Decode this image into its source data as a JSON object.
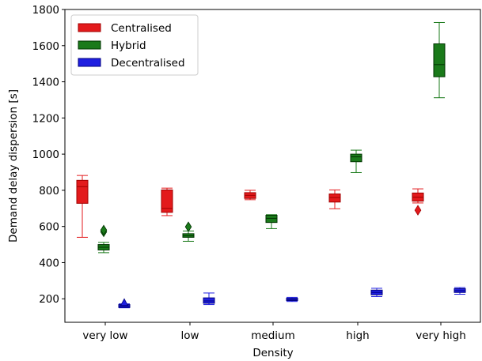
{
  "chart_data": {
    "type": "boxplot",
    "title": "",
    "xlabel": "Density",
    "ylabel": "Demand delay dispersion [s]",
    "categories": [
      "very low",
      "low",
      "medium",
      "high",
      "very high"
    ],
    "ylim": [
      70,
      1800
    ],
    "yticks": [
      200,
      400,
      600,
      800,
      1000,
      1200,
      1400,
      1600,
      1800
    ],
    "grid": false,
    "legend_position": "top-left",
    "series": [
      {
        "name": "Centralised",
        "color": "#e31a1c",
        "edge": "#a00000",
        "flier_marker": "diamond",
        "boxes": [
          {
            "low": 540,
            "q1": 728,
            "median": 820,
            "q3": 855,
            "high": 882,
            "fliers": []
          },
          {
            "low": 660,
            "q1": 678,
            "median": 700,
            "q3": 802,
            "high": 812,
            "fliers": []
          },
          {
            "low": 748,
            "q1": 755,
            "median": 772,
            "q3": 787,
            "high": 800,
            "fliers": []
          },
          {
            "low": 698,
            "q1": 735,
            "median": 760,
            "q3": 780,
            "high": 802,
            "fliers": []
          },
          {
            "low": 730,
            "q1": 740,
            "median": 762,
            "q3": 785,
            "high": 808,
            "fliers": [
              690
            ]
          }
        ]
      },
      {
        "name": "Hybrid",
        "color": "#1a7a1a",
        "edge": "#003300",
        "flier_marker": "diamond",
        "boxes": [
          {
            "low": 455,
            "q1": 470,
            "median": 485,
            "q3": 500,
            "high": 512,
            "fliers": [
              570,
              580
            ]
          },
          {
            "low": 518,
            "q1": 540,
            "median": 548,
            "q3": 560,
            "high": 575,
            "fliers": [
              598
            ]
          },
          {
            "low": 588,
            "q1": 622,
            "median": 645,
            "q3": 662,
            "high": 665,
            "fliers": []
          },
          {
            "low": 898,
            "q1": 958,
            "median": 985,
            "q3": 1000,
            "high": 1022,
            "fliers": []
          },
          {
            "low": 1312,
            "q1": 1428,
            "median": 1495,
            "q3": 1610,
            "high": 1728,
            "fliers": []
          }
        ]
      },
      {
        "name": "Decentralised",
        "color": "#1f1fe0",
        "edge": "#000080",
        "flier_marker": "triangle",
        "boxes": [
          {
            "low": 150,
            "q1": 152,
            "median": 160,
            "q3": 168,
            "high": 172,
            "fliers": [
              178
            ]
          },
          {
            "low": 168,
            "q1": 175,
            "median": 188,
            "q3": 205,
            "high": 232,
            "fliers": []
          },
          {
            "low": 185,
            "q1": 190,
            "median": 195,
            "q3": 203,
            "high": 208,
            "fliers": []
          },
          {
            "low": 212,
            "q1": 222,
            "median": 235,
            "q3": 248,
            "high": 258,
            "fliers": []
          },
          {
            "low": 225,
            "q1": 235,
            "median": 245,
            "q3": 256,
            "high": 262,
            "fliers": []
          }
        ]
      }
    ]
  }
}
